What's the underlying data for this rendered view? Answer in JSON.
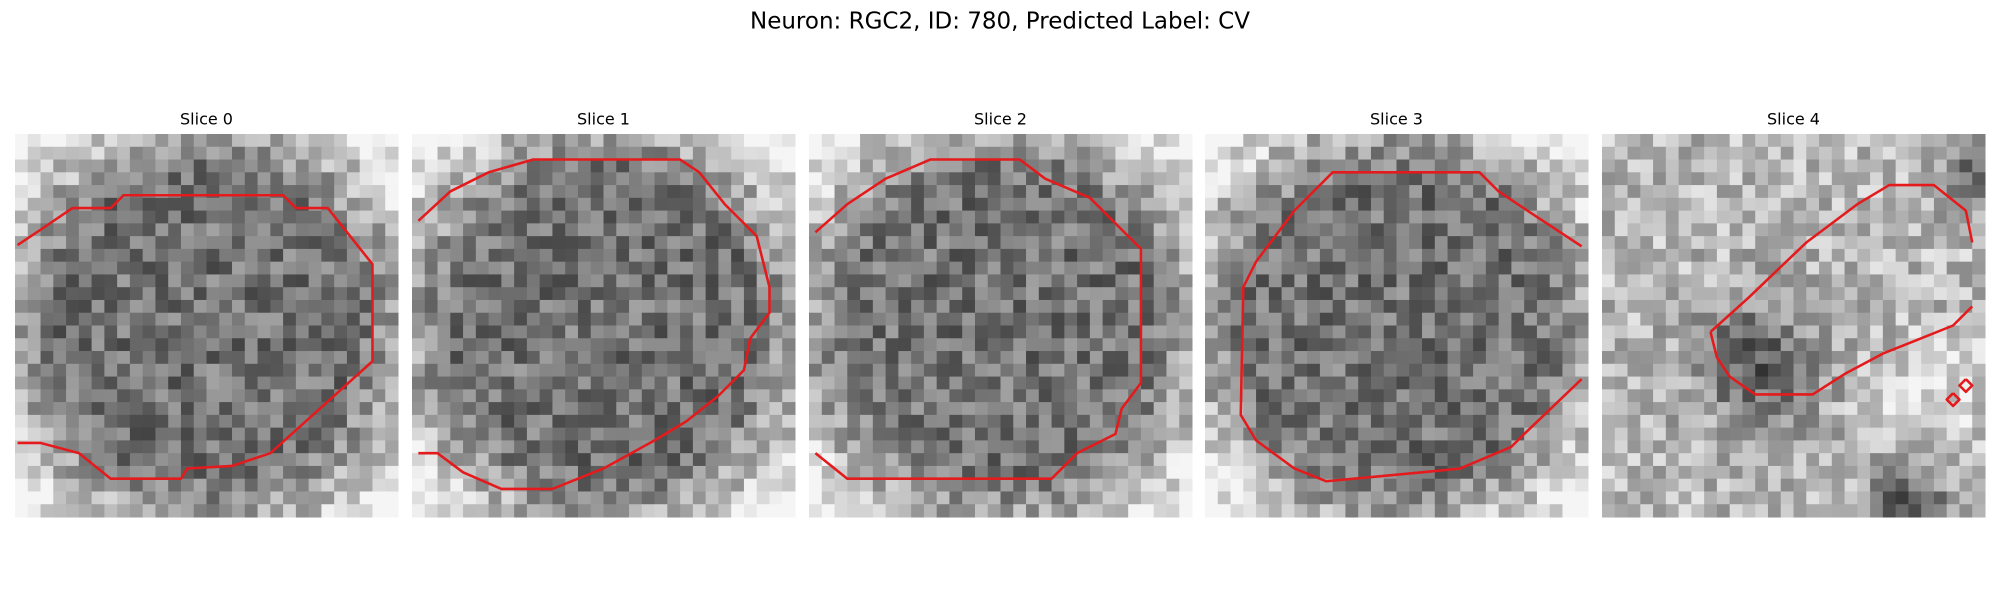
{
  "header": {
    "title": "Neuron: RGC2, ID: 780, Predicted Label: CV"
  },
  "panels": [
    {
      "title": "Slice 0"
    },
    {
      "title": "Slice 1"
    },
    {
      "title": "Slice 2"
    },
    {
      "title": "Slice 3"
    },
    {
      "title": "Slice 4"
    }
  ]
}
